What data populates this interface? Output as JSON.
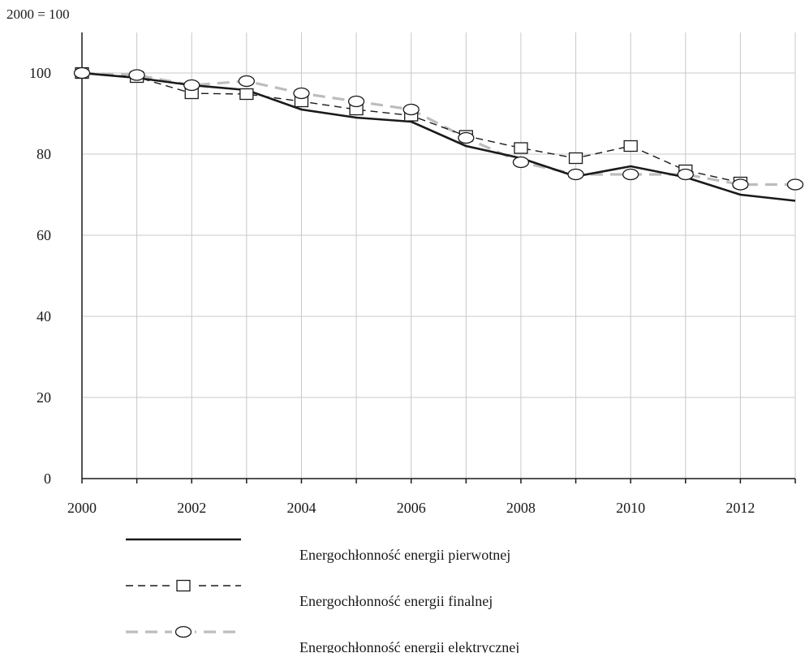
{
  "chart_data": {
    "type": "line",
    "unit_label": "2000 = 100",
    "x": [
      2000,
      2001,
      2002,
      2003,
      2004,
      2005,
      2006,
      2007,
      2008,
      2009,
      2010,
      2011,
      2012,
      2013
    ],
    "xlim": [
      2000,
      2013
    ],
    "ylim": [
      0,
      110
    ],
    "x_ticks": [
      2000,
      2002,
      2004,
      2006,
      2008,
      2010,
      2012
    ],
    "y_ticks": [
      0,
      20,
      40,
      60,
      80,
      100
    ],
    "grid": true,
    "legend_position": "bottom",
    "series": [
      {
        "name": "Energochłonność energii pierwotnej",
        "style": "solid",
        "marker": "none",
        "color": "#1a1a1a",
        "values": [
          100,
          98.8,
          97,
          95.8,
          91,
          89,
          88,
          82,
          79,
          74.5,
          77,
          74.3,
          70,
          68.5
        ]
      },
      {
        "name": "Energochłonność energii finalnej",
        "style": "dashed",
        "marker": "square",
        "color": "#1a1a1a",
        "values": [
          100,
          99,
          95,
          94.8,
          93,
          91,
          89.5,
          84.5,
          81.5,
          79,
          82,
          76,
          73,
          null
        ]
      },
      {
        "name": "Energochłonność energii elektrycznej",
        "style": "dashed",
        "marker": "circle",
        "color": "#bdbdbd",
        "values": [
          100,
          99.5,
          97,
          98,
          95,
          93,
          91,
          84,
          78,
          75,
          75,
          75,
          72.5,
          72.5
        ]
      }
    ]
  }
}
